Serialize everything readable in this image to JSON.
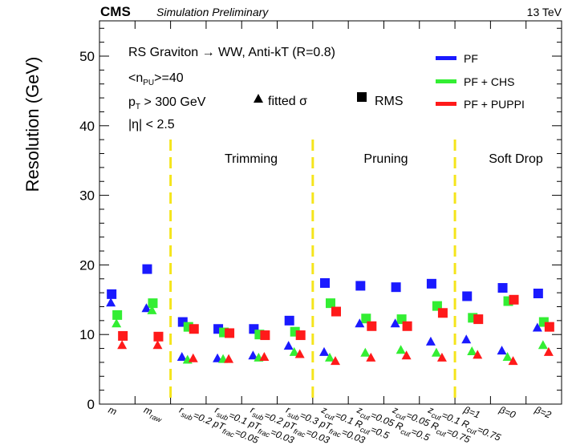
{
  "header": {
    "experiment": "CMS",
    "status": "Simulation Preliminary",
    "energy": "13 TeV"
  },
  "annotations": {
    "process": "RS Graviton → WW, Anti-kT (R=0.8)",
    "pileup": "<nPU>=40",
    "pt_cut": "pT > 300 GeV",
    "eta_cut": "|η| < 2.5",
    "marker_fitted": "fitted σ",
    "marker_rms": "RMS"
  },
  "sections": [
    "Trimming",
    "Pruning",
    "Soft Drop"
  ],
  "colors": {
    "PF": "#1a1aff",
    "PF + CHS": "#33ee33",
    "PF + PUPPI": "#ff1a1a",
    "divider": "#f5e51b"
  },
  "chart_data": {
    "type": "scatter",
    "ylabel": "Resolution (GeV)",
    "ylim": [
      0,
      55
    ],
    "yticks": [
      0,
      10,
      20,
      30,
      40,
      50
    ],
    "grid": false,
    "legend_position": "top-right",
    "categories": [
      "m",
      "m_raw",
      "r_sub=0.2 pT_frac=0.05",
      "r_sub=0.1 pT_frac=0.03",
      "r_sub=0.2 pT_frac=0.03",
      "r_sub=0.3 pT_frac=0.03",
      "z_cut=0.1 R_cut=0.5",
      "z_cut=0.05 R_cut=0.5",
      "z_cut=0.05 R_cut=0.75",
      "z_cut=0.1 R_cut=0.75",
      "β=1",
      "β=0",
      "β=2"
    ],
    "series": [
      {
        "name": "PF",
        "marker": "RMS",
        "values": [
          15.8,
          19.4,
          11.8,
          10.8,
          10.8,
          12.0,
          17.4,
          17.0,
          16.8,
          17.3,
          15.5,
          16.7,
          15.9
        ]
      },
      {
        "name": "PF + CHS",
        "marker": "RMS",
        "values": [
          12.8,
          14.5,
          11.1,
          10.3,
          10.0,
          10.4,
          14.5,
          12.3,
          12.2,
          14.1,
          12.4,
          14.8,
          11.8
        ]
      },
      {
        "name": "PF + PUPPI",
        "marker": "RMS",
        "values": [
          9.8,
          9.7,
          10.8,
          10.2,
          9.9,
          9.9,
          13.3,
          11.2,
          11.2,
          13.1,
          12.2,
          15.0,
          11.1
        ]
      },
      {
        "name": "PF",
        "marker": "fitted σ",
        "values": [
          14.6,
          13.8,
          6.8,
          6.6,
          7.0,
          8.4,
          7.5,
          11.6,
          11.6,
          9.0,
          9.3,
          7.7,
          11.0
        ]
      },
      {
        "name": "PF + CHS",
        "marker": "fitted σ",
        "values": [
          11.6,
          13.5,
          6.4,
          6.5,
          6.7,
          7.5,
          6.7,
          7.4,
          7.8,
          7.4,
          7.6,
          6.8,
          8.5
        ]
      },
      {
        "name": "PF + PUPPI",
        "marker": "fitted σ",
        "values": [
          8.5,
          8.5,
          6.6,
          6.5,
          6.8,
          7.2,
          6.2,
          6.7,
          7.0,
          6.7,
          7.1,
          6.2,
          7.5
        ]
      }
    ]
  }
}
